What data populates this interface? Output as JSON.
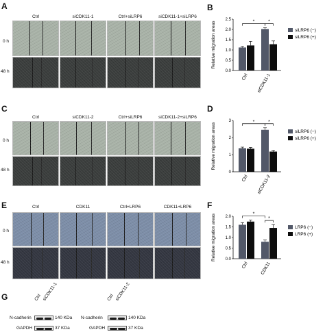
{
  "panels": {
    "A": {
      "letter": "A",
      "cols": [
        "Ctrl",
        "siCDK11-1",
        "Ctrl+siLRP6",
        "siCDK11-1+siLRP6"
      ],
      "rows": [
        "0 h",
        "48 h"
      ]
    },
    "C": {
      "letter": "C",
      "cols": [
        "Ctrl",
        "siCDK11-2",
        "Ctrl+siLRP6",
        "siCDK11-2+siLRP6"
      ],
      "rows": [
        "0 h",
        "48 h"
      ]
    },
    "E": {
      "letter": "E",
      "cols": [
        "Ctrl",
        "CDK11",
        "Ctrl+LRP6",
        "CDK11+LRP6"
      ],
      "rows": [
        "0 h",
        "48 h"
      ]
    },
    "G": {
      "letter": "G"
    }
  },
  "colors": {
    "minus": "#525868",
    "plus": "#0d0d0d",
    "micro_top": "#a9b3a8",
    "micro_bottom": "#3a3d3c",
    "micro_e_top": "#7d8ea8",
    "micro_e_bottom": "#333640"
  },
  "chart_data": [
    {
      "panel": "B",
      "type": "bar",
      "categories": [
        "Ctrl",
        "siCDK11-1"
      ],
      "series": [
        {
          "name": "siLRP6 (−)",
          "values": [
            1.12,
            2.02
          ],
          "errors": [
            0.05,
            0.06
          ]
        },
        {
          "name": "siLRP6 (+)",
          "values": [
            1.22,
            1.28
          ],
          "errors": [
            0.2,
            0.16
          ]
        }
      ],
      "ylabel": "Relative migration areas",
      "yticks": [
        "0.0",
        "0.5",
        "1.0",
        "1.5",
        "2.0",
        "2.5"
      ],
      "ylim": [
        0,
        2.5
      ],
      "sig": [
        "*",
        "*"
      ]
    },
    {
      "panel": "D",
      "type": "bar",
      "categories": [
        "Ctrl",
        "siCDK11-2"
      ],
      "series": [
        {
          "name": "siLRP6 (−)",
          "values": [
            1.38,
            2.45
          ],
          "errors": [
            0.06,
            0.12
          ]
        },
        {
          "name": "siLRP6 (+)",
          "values": [
            1.35,
            1.18
          ],
          "errors": [
            0.07,
            0.07
          ]
        }
      ],
      "ylabel": "Relative migration areas",
      "yticks": [
        "0",
        "1",
        "2",
        "3"
      ],
      "ylim": [
        0,
        3
      ],
      "sig": [
        "*",
        "*"
      ]
    },
    {
      "panel": "F",
      "type": "bar",
      "categories": [
        "Ctrl",
        "CDK11"
      ],
      "series": [
        {
          "name": "LRP6 (−)",
          "values": [
            1.6,
            0.8
          ],
          "errors": [
            0.1,
            0.08
          ]
        },
        {
          "name": "LRP6 (+)",
          "values": [
            1.75,
            1.45
          ],
          "errors": [
            0.07,
            0.16
          ]
        }
      ],
      "ylabel": "Relative migration areas",
      "yticks": [
        "0.0",
        "0.5",
        "1.0",
        "1.5",
        "2.0"
      ],
      "ylim": [
        0,
        2.0
      ],
      "sig": [
        "*",
        "*"
      ]
    }
  ],
  "blots": [
    {
      "lanes": [
        "Ctrl",
        "siCDK11-1"
      ],
      "rows": [
        {
          "label": "N-cadherin",
          "kda": "140 KDa"
        },
        {
          "label": "GAPDH",
          "kda": "37 KDa"
        }
      ]
    },
    {
      "lanes": [
        "Ctrl",
        "siCDK11-2"
      ],
      "rows": [
        {
          "label": "N-cadherin",
          "kda": "140 KDa"
        },
        {
          "label": "GAPDH",
          "kda": "37 KDa"
        }
      ]
    }
  ]
}
